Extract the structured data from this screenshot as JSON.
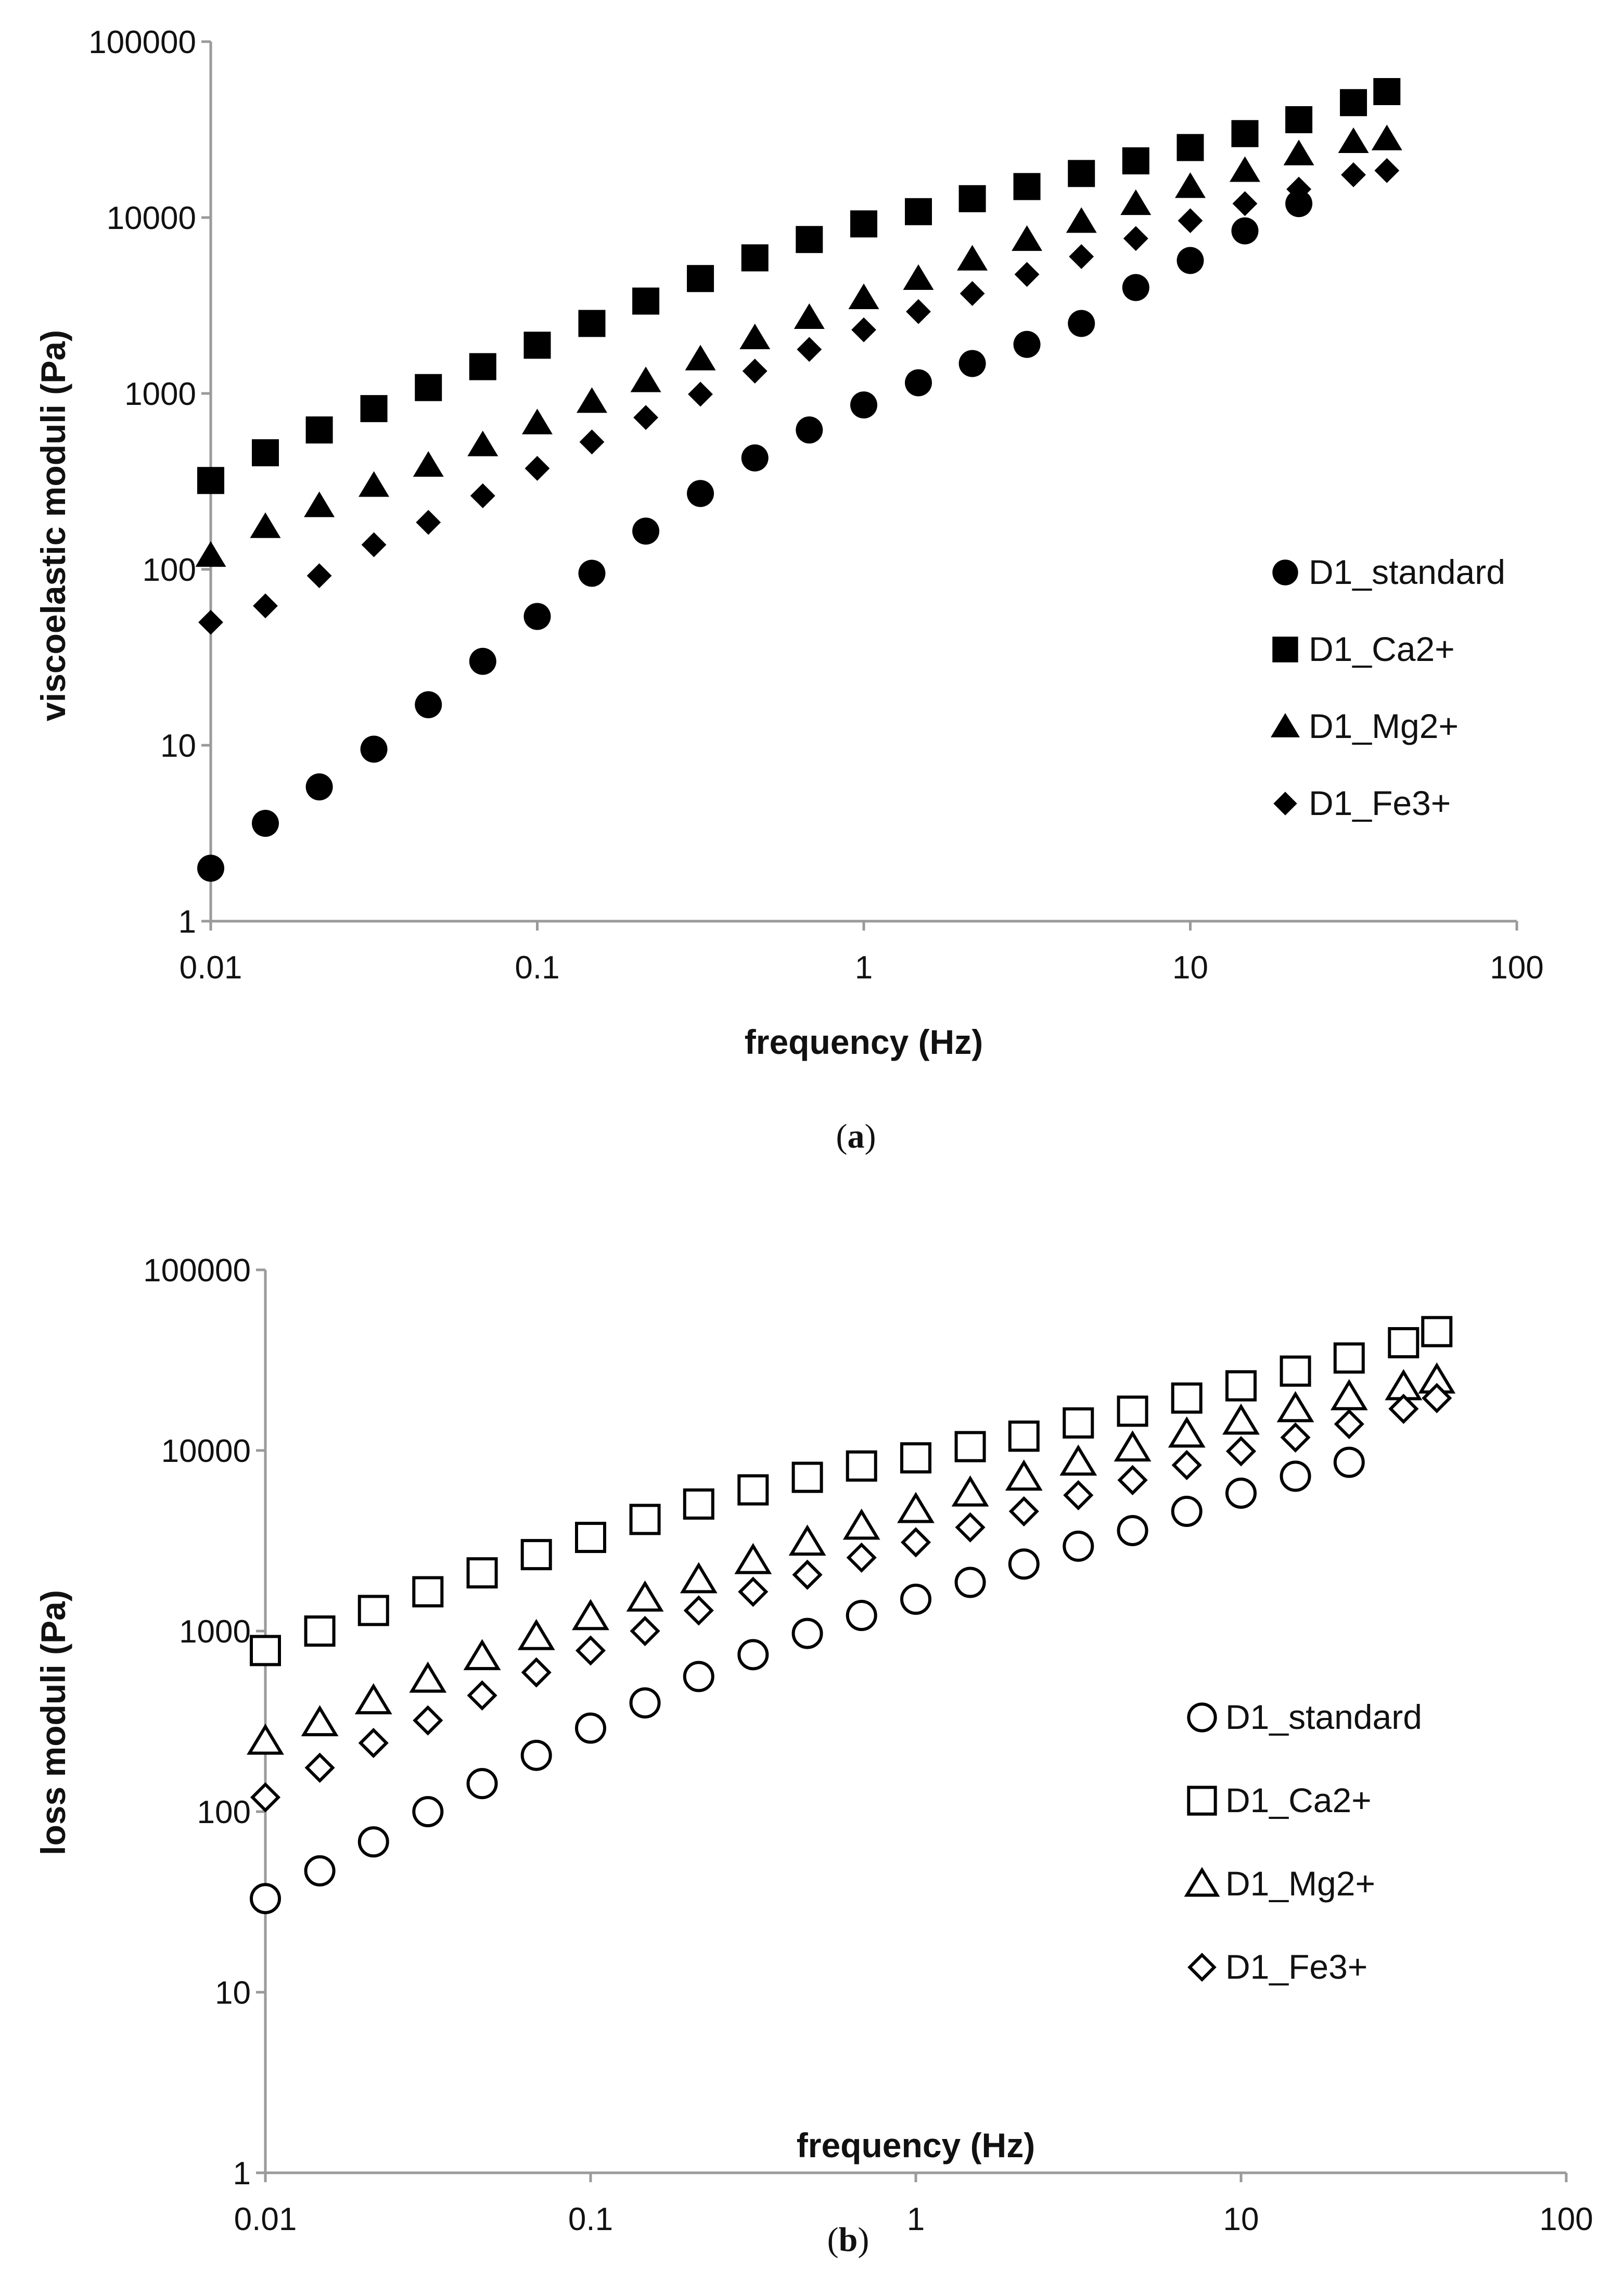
{
  "figure_captions": [
    "a",
    "b"
  ],
  "chart_data": [
    {
      "type": "scatter",
      "panel": "a",
      "xlabel": "frequency (Hz)",
      "ylabel": "viscoelastic moduli (Pa)",
      "xscale": "log",
      "yscale": "log",
      "xlim": [
        0.01,
        100
      ],
      "ylim": [
        1,
        100000
      ],
      "xticks": [
        "0.01",
        "0.1",
        "1",
        "10",
        "100"
      ],
      "yticks": [
        "1",
        "10",
        "100",
        "1000",
        "10000",
        "100000"
      ],
      "legend_position": "right",
      "marker_fill": "filled",
      "x": [
        0.01,
        0.0147,
        0.0215,
        0.0316,
        0.0464,
        0.0681,
        0.1,
        0.147,
        0.215,
        0.316,
        0.464,
        0.681,
        1,
        1.47,
        2.15,
        3.16,
        4.64,
        6.81,
        10,
        14.7,
        21.5,
        31.6,
        40
      ],
      "series": [
        {
          "name": "D1_standard",
          "marker": "circle",
          "x": [
            0.01,
            0.0147,
            0.0215,
            0.0316,
            0.0464,
            0.0681,
            0.1,
            0.147,
            0.215,
            0.316,
            0.464,
            0.681,
            1,
            1.47,
            2.15,
            3.16,
            4.64,
            6.81,
            10,
            14.7,
            21.5
          ],
          "values": [
            2,
            3.6,
            5.8,
            9.5,
            17,
            30,
            54,
            95,
            165,
            270,
            430,
            620,
            860,
            1150,
            1480,
            1900,
            2500,
            4000,
            5700,
            8400,
            12000
          ]
        },
        {
          "name": "D1_Ca2+",
          "marker": "square",
          "values": [
            320,
            460,
            620,
            820,
            1080,
            1420,
            1880,
            2500,
            3350,
            4500,
            5900,
            7500,
            9200,
            10800,
            12800,
            15000,
            17800,
            21000,
            25000,
            30000,
            36000,
            45000,
            52000
          ]
        },
        {
          "name": "D1_Mg2+",
          "marker": "triangle",
          "values": [
            120,
            175,
            230,
            300,
            390,
            510,
            680,
            900,
            1180,
            1570,
            2070,
            2700,
            3500,
            4500,
            5800,
            7500,
            9500,
            12000,
            15000,
            18500,
            23000,
            27000,
            28000
          ]
        },
        {
          "name": "D1_Fe3+",
          "marker": "diamond",
          "values": [
            50,
            62,
            92,
            138,
            185,
            262,
            375,
            530,
            730,
            990,
            1340,
            1780,
            2300,
            2920,
            3700,
            4750,
            6000,
            7600,
            9600,
            12000,
            14500,
            17500,
            18500
          ]
        }
      ]
    },
    {
      "type": "scatter",
      "panel": "b",
      "xlabel": "frequency (Hz)",
      "ylabel": "loss moduli (Pa)",
      "xscale": "log",
      "yscale": "log",
      "xlim": [
        0.01,
        100
      ],
      "ylim": [
        1,
        100000
      ],
      "xticks": [
        "0.01",
        "0.1",
        "1",
        "10",
        "100"
      ],
      "yticks": [
        "1",
        "10",
        "100",
        "1000",
        "10000",
        "100000"
      ],
      "legend_position": "right",
      "marker_fill": "open",
      "x": [
        0.01,
        0.0147,
        0.0215,
        0.0316,
        0.0464,
        0.0681,
        0.1,
        0.147,
        0.215,
        0.316,
        0.464,
        0.681,
        1,
        1.47,
        2.15,
        3.16,
        4.64,
        6.81,
        10,
        14.7,
        21.5,
        31.6,
        40
      ],
      "series": [
        {
          "name": "D1_standard",
          "marker": "circle",
          "x": [
            0.01,
            0.0147,
            0.0215,
            0.0316,
            0.0464,
            0.0681,
            0.1,
            0.147,
            0.215,
            0.316,
            0.464,
            0.681,
            1,
            1.47,
            2.15,
            3.16,
            4.64,
            6.81,
            10,
            14.7,
            21.5
          ],
          "values": [
            33,
            47,
            68,
            100,
            143,
            205,
            290,
            400,
            560,
            740,
            970,
            1220,
            1500,
            1860,
            2350,
            2950,
            3600,
            4600,
            5800,
            7200,
            8600
          ]
        },
        {
          "name": "D1_Ca2+",
          "marker": "square",
          "values": [
            780,
            1000,
            1300,
            1650,
            2100,
            2650,
            3300,
            4150,
            5050,
            6050,
            7100,
            8200,
            9100,
            10500,
            12000,
            14200,
            16500,
            19500,
            22800,
            27500,
            32500,
            39500,
            45500
          ]
        },
        {
          "name": "D1_Mg2+",
          "marker": "triangle",
          "values": [
            245,
            310,
            410,
            540,
            720,
            930,
            1200,
            1520,
            1920,
            2450,
            3100,
            3800,
            4700,
            5800,
            7100,
            8600,
            10300,
            12300,
            14500,
            17000,
            19800,
            22500,
            24500
          ]
        },
        {
          "name": "D1_Fe3+",
          "marker": "diamond",
          "values": [
            120,
            175,
            240,
            320,
            440,
            590,
            780,
            1000,
            1300,
            1650,
            2050,
            2550,
            3100,
            3750,
            4600,
            5650,
            6850,
            8300,
            9900,
            11800,
            14000,
            17000,
            19500
          ]
        }
      ]
    }
  ]
}
